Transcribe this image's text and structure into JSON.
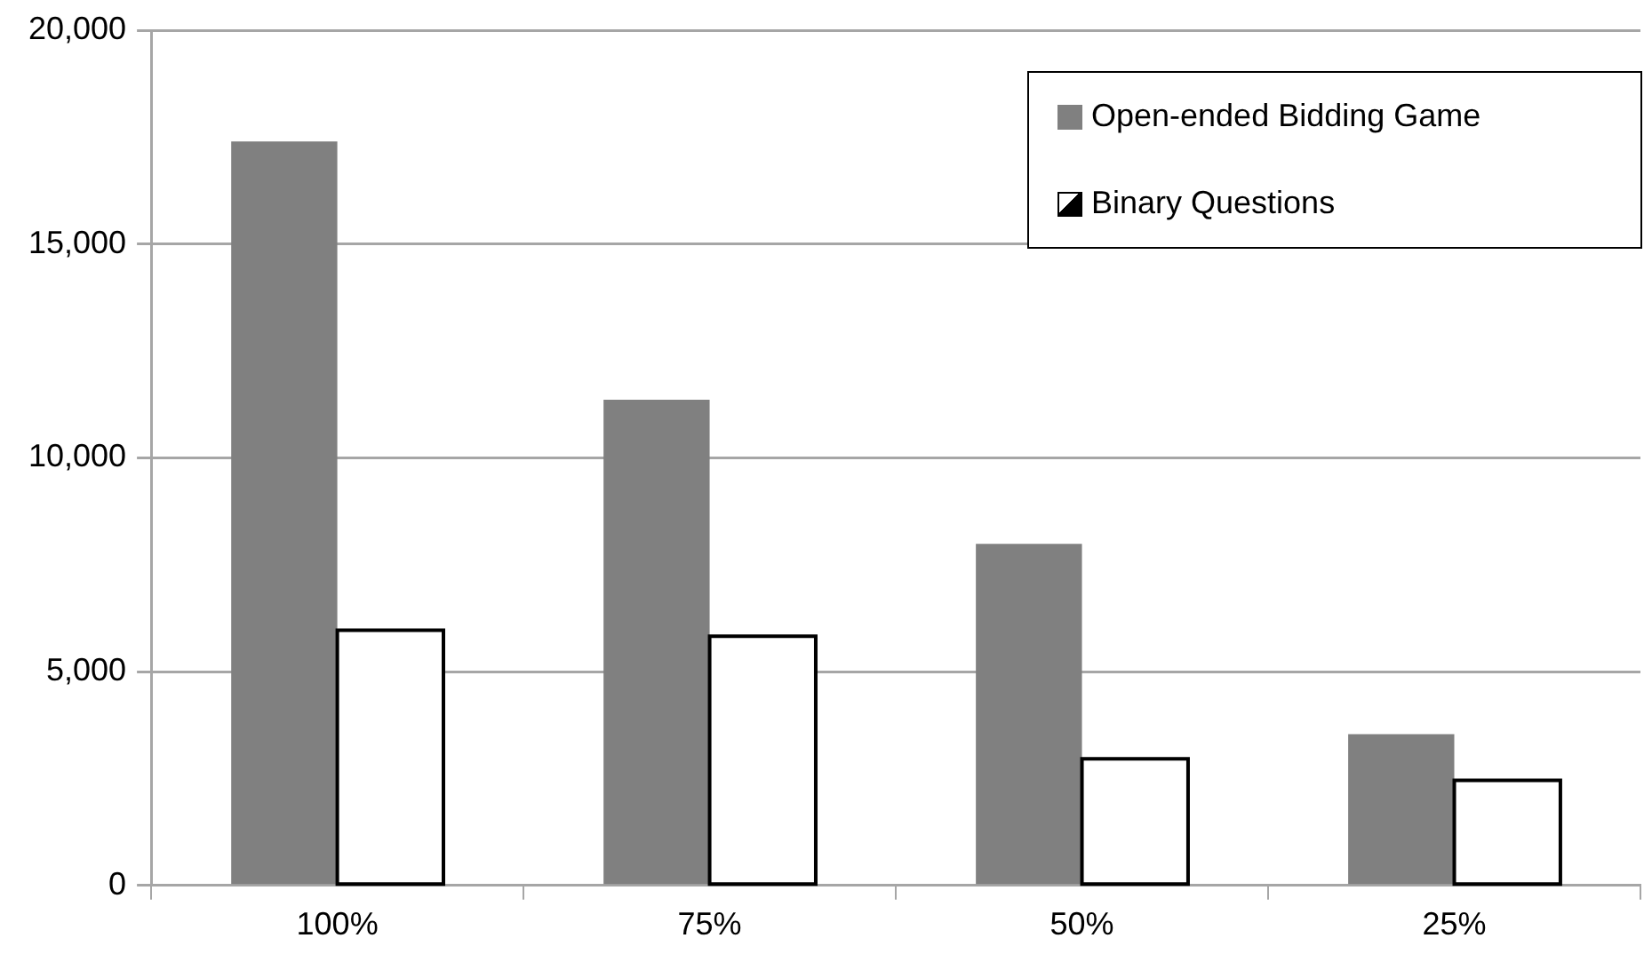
{
  "chart_data": {
    "type": "bar",
    "categories": [
      "100%",
      "75%",
      "50%",
      "25%"
    ],
    "series": [
      {
        "name": "Open-ended Bidding Game",
        "color": "#808080",
        "values": [
          17400,
          11360,
          7990,
          3540
        ]
      },
      {
        "name": "Binary Questions",
        "color": "#000000",
        "values": [
          5970,
          5830,
          2960,
          2460
        ]
      }
    ],
    "ylim": [
      0,
      20000
    ],
    "yticks": [
      0,
      {
        "value": 5000,
        "label": "5,000"
      },
      {
        "value": 10000,
        "label": "10,000"
      },
      {
        "value": 15000,
        "label": "15,000"
      },
      {
        "value": 20000,
        "label": "20,000"
      }
    ],
    "grid": "y",
    "legend": "top right"
  }
}
